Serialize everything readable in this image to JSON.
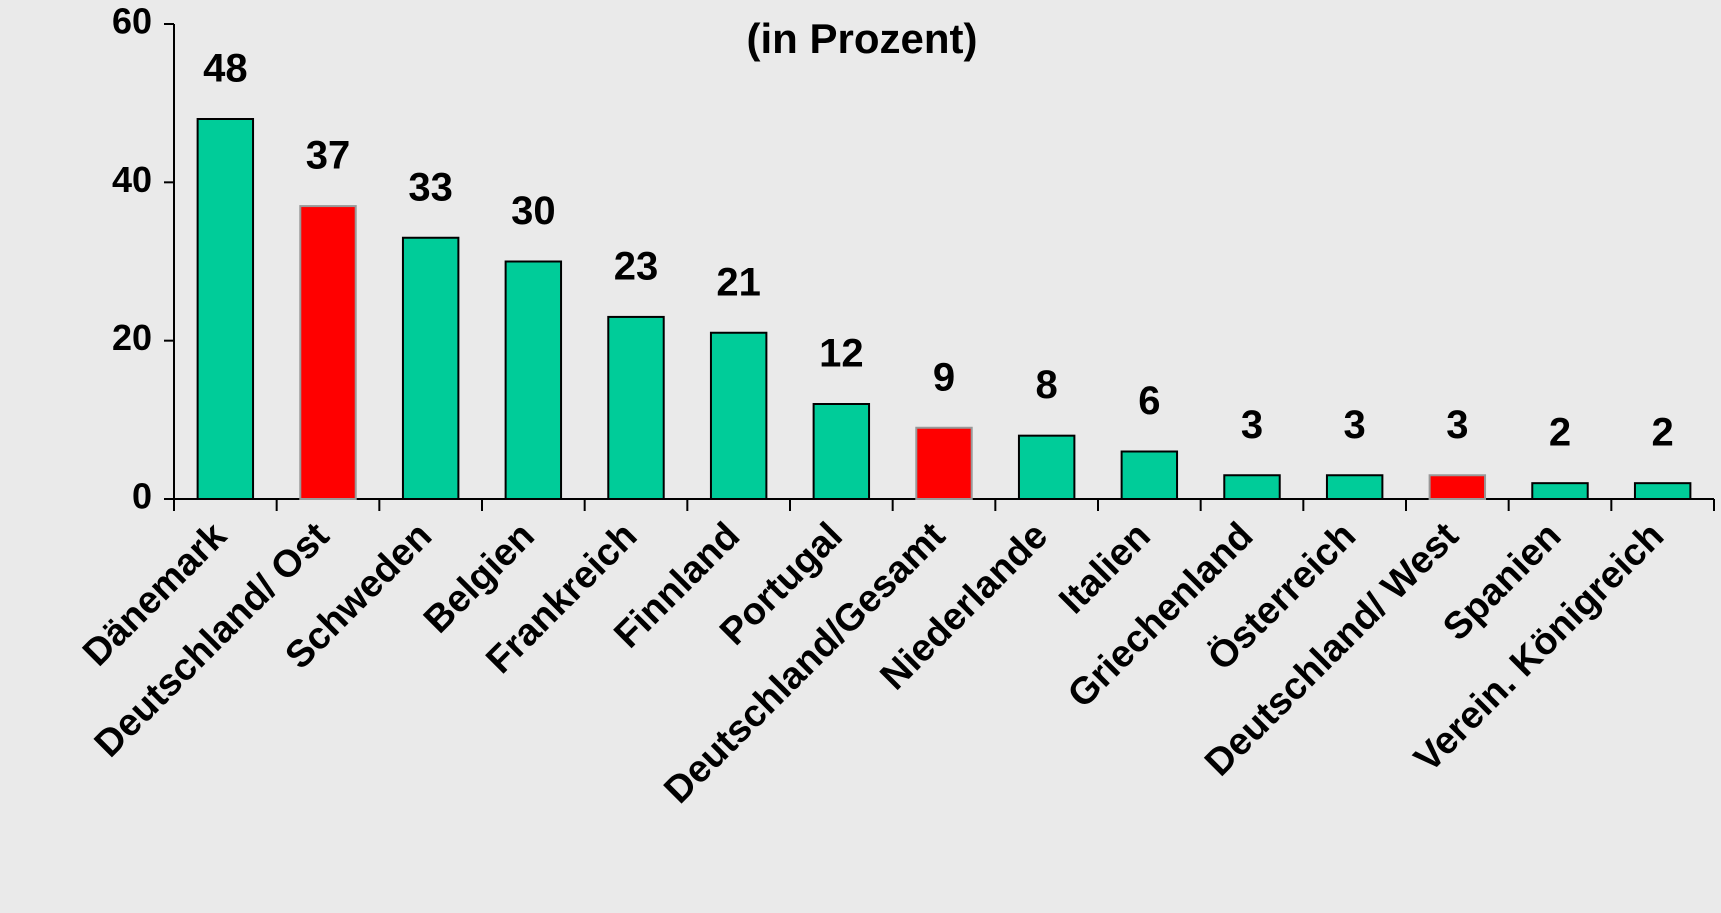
{
  "chart_data": {
    "type": "bar",
    "title": "(in Prozent)",
    "categories": [
      "Dänemark",
      "Deutschland/ Ost",
      "Schweden",
      "Belgien",
      "Frankreich",
      "Finnland",
      "Portugal",
      "Deutschland/Gesamt",
      "Niederlande",
      "Italien",
      "Griechenland",
      "Österreich",
      "Deutschland/ West",
      "Spanien",
      "Verein. Königreich"
    ],
    "values": [
      48,
      37,
      33,
      30,
      23,
      21,
      12,
      9,
      8,
      6,
      3,
      3,
      3,
      2,
      2
    ],
    "colors": [
      "#00cc99",
      "#ff0000",
      "#00cc99",
      "#00cc99",
      "#00cc99",
      "#00cc99",
      "#00cc99",
      "#ff0000",
      "#00cc99",
      "#00cc99",
      "#00cc99",
      "#00cc99",
      "#ff0000",
      "#00cc99",
      "#00cc99"
    ],
    "ylim": [
      0,
      60
    ],
    "yticks": [
      0,
      20,
      40,
      60
    ],
    "grid": false
  }
}
